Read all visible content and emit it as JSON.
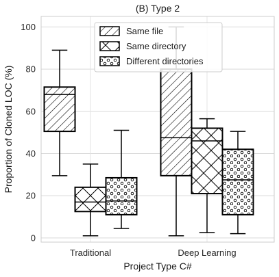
{
  "chart_data": {
    "type": "box",
    "title": "(B) Type 2",
    "xlabel": "Project Type C#",
    "ylabel": "Proportion of Cloned LOC (%)",
    "ylim": [
      -2,
      105
    ],
    "yticks": [
      0,
      20,
      40,
      60,
      80,
      100
    ],
    "grid": true,
    "legend_position": "top-center",
    "categories": [
      "Traditional",
      "Deep Learning"
    ],
    "series": [
      {
        "name": "Same file",
        "pattern": "diagonal-hatch",
        "boxes": [
          {
            "category": "Traditional",
            "whislo": 29.5,
            "q1": 50.5,
            "med": 68.0,
            "q3": 71.5,
            "whishi": 89.0
          },
          {
            "category": "Deep Learning",
            "whislo": 1.0,
            "q1": 29.5,
            "med": 47.5,
            "q3": 80.0,
            "whishi": 100.0
          }
        ]
      },
      {
        "name": "Same directory",
        "pattern": "cross-hatch",
        "boxes": [
          {
            "category": "Traditional",
            "whislo": 1.0,
            "q1": 12.5,
            "med": 17.0,
            "q3": 24.0,
            "whishi": 35.0
          },
          {
            "category": "Deep Learning",
            "whislo": 2.5,
            "q1": 21.0,
            "med": 46.0,
            "q3": 52.0,
            "whishi": 56.5
          }
        ]
      },
      {
        "name": "Different directories",
        "pattern": "dots",
        "boxes": [
          {
            "category": "Traditional",
            "whislo": 4.5,
            "q1": 11.0,
            "med": 17.5,
            "q3": 28.5,
            "whishi": 51.0
          },
          {
            "category": "Deep Learning",
            "whislo": 2.0,
            "q1": 11.0,
            "med": 27.5,
            "q3": 42.0,
            "whishi": 50.5
          }
        ]
      }
    ]
  }
}
